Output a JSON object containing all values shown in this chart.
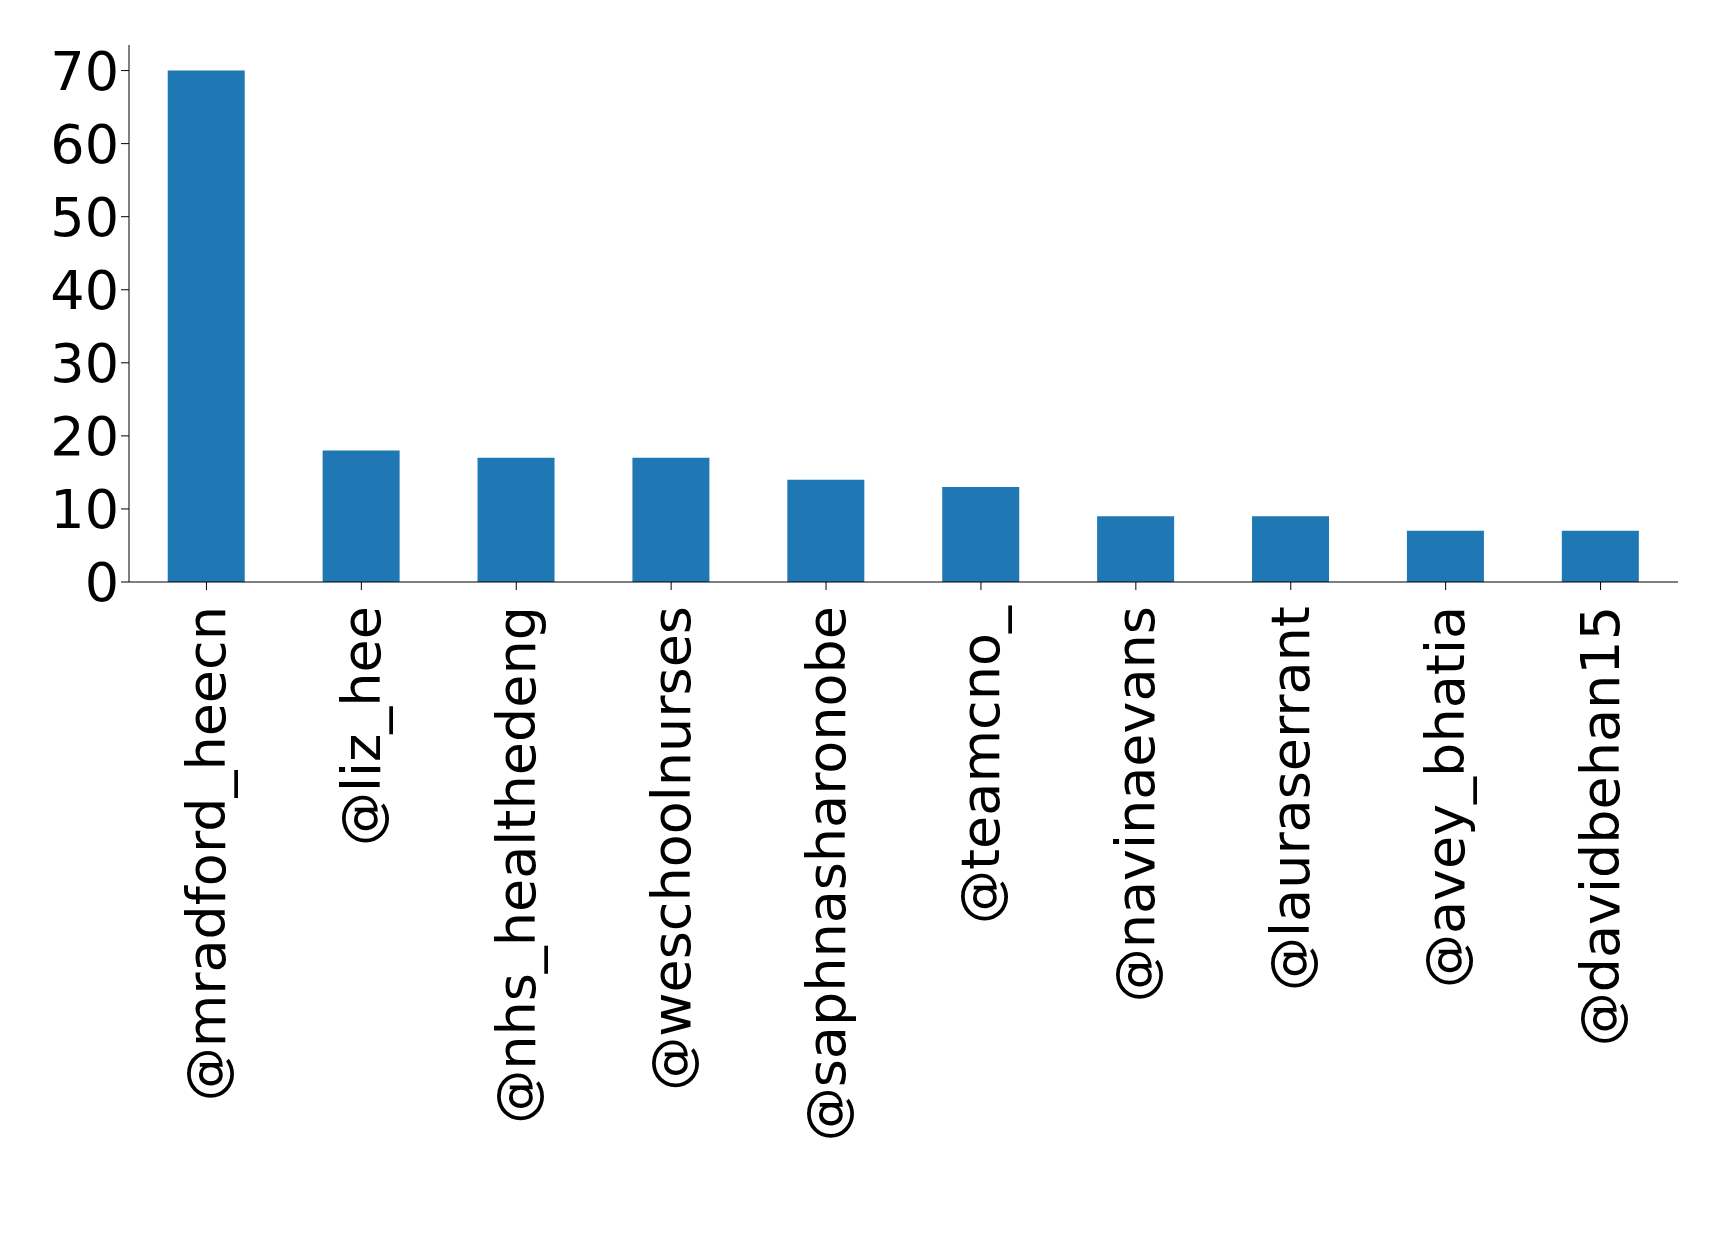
{
  "chart_data": {
    "type": "bar",
    "categories": [
      "@mradford_heecn",
      "@liz_hee",
      "@nhs_healthedeng",
      "@weschoolnurses",
      "@saphnasharonobe",
      "@teamcno_",
      "@navinaevans",
      "@lauraserrant",
      "@avey_bhatia",
      "@davidbehan15"
    ],
    "values": [
      70,
      18,
      17,
      17,
      14,
      13,
      9,
      9,
      7,
      7
    ],
    "color": "#1f77b4",
    "ylim": [
      0,
      73.5
    ],
    "yticks": [
      0,
      10,
      20,
      30,
      40,
      50,
      60,
      70
    ],
    "grid": false,
    "legend": false
  }
}
